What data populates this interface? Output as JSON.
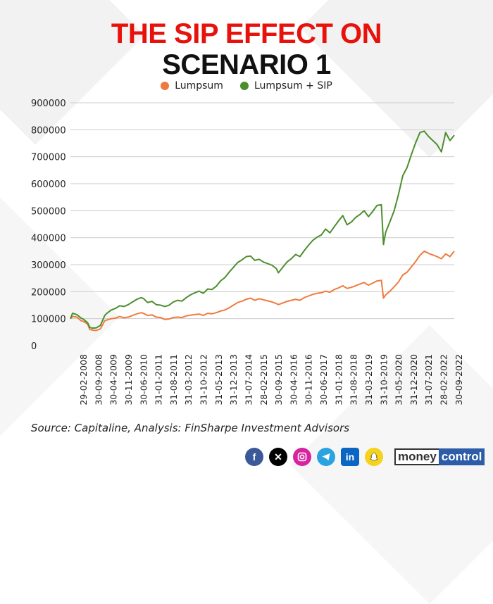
{
  "title_line1": "THE SIP EFFECT ON",
  "title_line2": "SCENARIO 1",
  "colors": {
    "title_red": "#e8120c",
    "title_black": "#111111",
    "lumpsum": "#f07a3e",
    "lumpsum_sip": "#4b8f2c",
    "grid": "#cccccc",
    "facebook": "#3b5998",
    "x": "#000000",
    "instagram": "#d6249f",
    "telegram": "#2aa3e0",
    "linkedin": "#0a66c2",
    "snapchat": "#f5d21c"
  },
  "source": "Source: Capitaline, Analysis: FinSharpe Investment Advisors",
  "footer": {
    "icons": [
      "facebook-icon",
      "x-icon",
      "instagram-icon",
      "telegram-icon",
      "linkedin-icon",
      "snapchat-icon"
    ],
    "logo_part1": "money",
    "logo_part2": "control"
  },
  "chart_data": {
    "type": "line",
    "ylim": [
      0,
      900000
    ],
    "yticks": [
      0,
      100000,
      200000,
      300000,
      400000,
      500000,
      600000,
      700000,
      800000,
      900000
    ],
    "ytick_labels": [
      "0",
      "100000",
      "200000",
      "300000",
      "400000",
      "500000",
      "600000",
      "700000",
      "800000",
      "900000"
    ],
    "xtick_labels": [
      "29-02-2008",
      "30-09-2008",
      "30-04-2009",
      "30-11-2009",
      "30-06-2010",
      "31-01-2011",
      "31-08-2011",
      "31-03-2012",
      "31-10-2012",
      "31-05-2013",
      "31-12-2013",
      "31-07-2014",
      "28-02-2015",
      "30-09-2015",
      "30-04-2016",
      "30-11-2016",
      "30-06-2017",
      "31-01-2018",
      "31-08-2018",
      "31-03-2019",
      "31-10-2019",
      "31-05-2020",
      "31-12-2020",
      "31-07-2021",
      "28-02-2022",
      "30-09-2022"
    ],
    "grid": true,
    "legend_position": "top-center",
    "series": [
      {
        "name": "Lumpsum",
        "x": [
          "2008-01",
          "2008-02",
          "2008-04",
          "2008-06",
          "2008-07",
          "2008-09",
          "2008-10",
          "2008-11",
          "2009-01",
          "2009-03",
          "2009-05",
          "2009-06",
          "2009-08",
          "2009-10",
          "2009-12",
          "2010-02",
          "2010-04",
          "2010-06",
          "2010-08",
          "2010-10",
          "2010-11",
          "2011-01",
          "2011-03",
          "2011-05",
          "2011-07",
          "2011-09",
          "2011-11",
          "2012-01",
          "2012-03",
          "2012-05",
          "2012-07",
          "2012-09",
          "2012-11",
          "2013-01",
          "2013-03",
          "2013-05",
          "2013-07",
          "2013-09",
          "2013-11",
          "2014-01",
          "2014-03",
          "2014-05",
          "2014-07",
          "2014-09",
          "2014-11",
          "2015-01",
          "2015-03",
          "2015-05",
          "2015-07",
          "2015-09",
          "2015-11",
          "2016-01",
          "2016-02",
          "2016-04",
          "2016-06",
          "2016-08",
          "2016-10",
          "2016-12",
          "2017-02",
          "2017-04",
          "2017-06",
          "2017-08",
          "2017-10",
          "2017-12",
          "2018-02",
          "2018-04",
          "2018-06",
          "2018-08",
          "2018-10",
          "2018-12",
          "2019-02",
          "2019-04",
          "2019-06",
          "2019-08",
          "2019-10",
          "2019-12",
          "2020-02",
          "2020-03",
          "2020-04",
          "2020-06",
          "2020-08",
          "2020-10",
          "2020-12",
          "2021-02",
          "2021-04",
          "2021-06",
          "2021-08",
          "2021-10",
          "2021-12",
          "2022-02",
          "2022-04",
          "2022-06",
          "2022-08",
          "2022-10",
          "2022-12"
        ],
        "values": [
          100000,
          108000,
          106000,
          92000,
          90000,
          80000,
          60000,
          58000,
          56000,
          62000,
          92000,
          95000,
          100000,
          102000,
          108000,
          103000,
          106000,
          112000,
          118000,
          122000,
          120000,
          112000,
          114000,
          106000,
          104000,
          97000,
          99000,
          104000,
          106000,
          104000,
          110000,
          113000,
          115000,
          117000,
          112000,
          120000,
          118000,
          122000,
          128000,
          132000,
          140000,
          150000,
          160000,
          165000,
          172000,
          176000,
          168000,
          174000,
          170000,
          166000,
          162000,
          156000,
          152000,
          158000,
          164000,
          168000,
          172000,
          168000,
          178000,
          184000,
          190000,
          194000,
          196000,
          202000,
          198000,
          208000,
          214000,
          222000,
          212000,
          216000,
          222000,
          228000,
          234000,
          224000,
          232000,
          240000,
          242000,
          176000,
          188000,
          202000,
          218000,
          236000,
          262000,
          272000,
          292000,
          312000,
          335000,
          350000,
          342000,
          336000,
          330000,
          322000,
          340000,
          330000,
          350000
        ]
      },
      {
        "name": "Lumpsum + SIP",
        "x": [
          "2008-01",
          "2008-02",
          "2008-04",
          "2008-06",
          "2008-07",
          "2008-09",
          "2008-10",
          "2008-11",
          "2009-01",
          "2009-03",
          "2009-05",
          "2009-06",
          "2009-08",
          "2009-10",
          "2009-12",
          "2010-02",
          "2010-04",
          "2010-06",
          "2010-08",
          "2010-10",
          "2010-11",
          "2011-01",
          "2011-03",
          "2011-05",
          "2011-07",
          "2011-09",
          "2011-11",
          "2012-01",
          "2012-03",
          "2012-05",
          "2012-07",
          "2012-09",
          "2012-11",
          "2013-01",
          "2013-03",
          "2013-05",
          "2013-07",
          "2013-09",
          "2013-11",
          "2014-01",
          "2014-03",
          "2014-05",
          "2014-07",
          "2014-09",
          "2014-11",
          "2015-01",
          "2015-03",
          "2015-05",
          "2015-07",
          "2015-09",
          "2015-11",
          "2016-01",
          "2016-02",
          "2016-04",
          "2016-06",
          "2016-08",
          "2016-10",
          "2016-12",
          "2017-02",
          "2017-04",
          "2017-06",
          "2017-08",
          "2017-10",
          "2017-12",
          "2018-02",
          "2018-04",
          "2018-06",
          "2018-08",
          "2018-10",
          "2018-12",
          "2019-02",
          "2019-04",
          "2019-06",
          "2019-08",
          "2019-10",
          "2019-12",
          "2020-02",
          "2020-03",
          "2020-04",
          "2020-06",
          "2020-08",
          "2020-10",
          "2020-12",
          "2021-02",
          "2021-04",
          "2021-06",
          "2021-08",
          "2021-10",
          "2021-12",
          "2022-02",
          "2022-04",
          "2022-06",
          "2022-08",
          "2022-10",
          "2022-12"
        ],
        "values": [
          100000,
          120000,
          115000,
          102000,
          98000,
          85000,
          68000,
          65000,
          66000,
          75000,
          112000,
          120000,
          132000,
          138000,
          148000,
          145000,
          152000,
          162000,
          172000,
          178000,
          175000,
          160000,
          164000,
          152000,
          150000,
          145000,
          150000,
          162000,
          168000,
          165000,
          178000,
          188000,
          196000,
          202000,
          194000,
          210000,
          208000,
          220000,
          240000,
          252000,
          272000,
          290000,
          308000,
          318000,
          330000,
          332000,
          316000,
          320000,
          310000,
          304000,
          298000,
          286000,
          270000,
          290000,
          310000,
          322000,
          338000,
          330000,
          352000,
          372000,
          390000,
          402000,
          410000,
          432000,
          418000,
          440000,
          462000,
          482000,
          448000,
          458000,
          475000,
          486000,
          500000,
          478000,
          498000,
          520000,
          522000,
          375000,
          420000,
          460000,
          500000,
          560000,
          630000,
          660000,
          708000,
          752000,
          790000,
          795000,
          775000,
          760000,
          745000,
          718000,
          790000,
          760000,
          780000
        ]
      }
    ]
  }
}
